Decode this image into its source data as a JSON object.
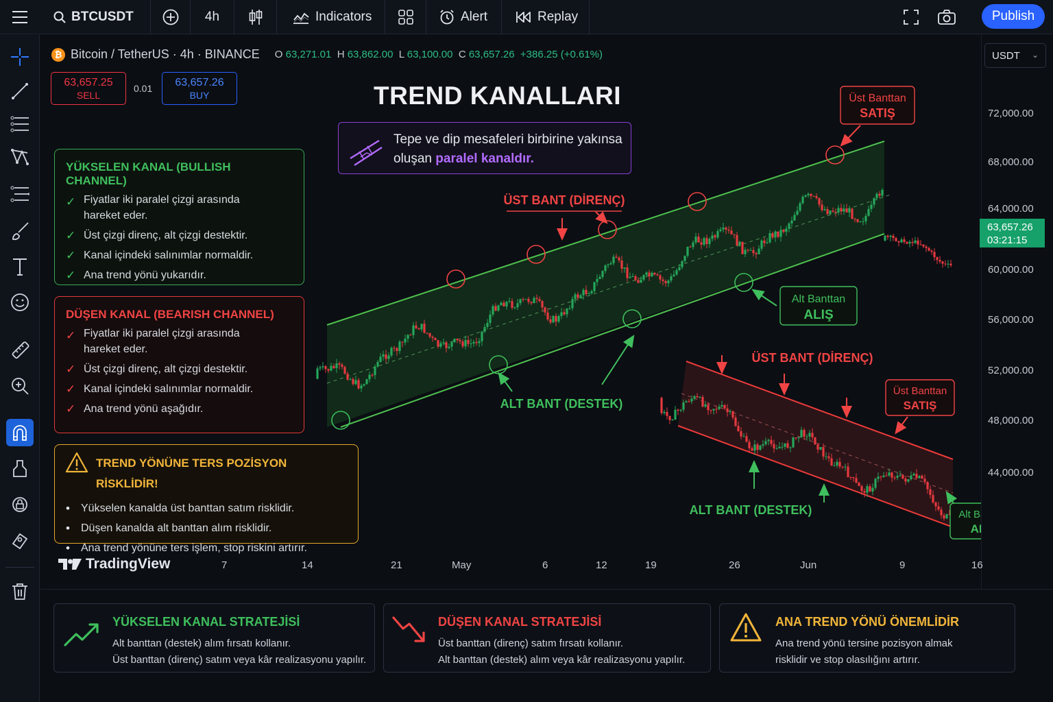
{
  "topbar": {
    "symbol": "BTCUSDT",
    "interval": "4h",
    "indicators": "Indicators",
    "alert": "Alert",
    "replay": "Replay",
    "publish": "Publish"
  },
  "chart_header": {
    "name": "Bitcoin / TetherUS · 4h · BINANCE",
    "btc_symbol": "₿",
    "o_label": "O",
    "o": "63,271.01",
    "h_label": "H",
    "h": "63,862.00",
    "l_label": "L",
    "l": "63,100.00",
    "c_label": "C",
    "c": "63,657.26",
    "change": "+386.25 (+0.61%)"
  },
  "trade": {
    "sell_price": "63,657.25",
    "sell_label": "SELL",
    "qty": "0.01",
    "buy_price": "63,657.26",
    "buy_label": "BUY"
  },
  "currency": "USDT",
  "title": "TREND KANALLARI",
  "info": {
    "line1": "Tepe ve dip mesafeleri birbirine yakınsa",
    "line2_prefix": "oluşan ",
    "line2_highlight": "paralel kanaldır."
  },
  "bullish_card": {
    "title": "YÜKSELEN KANAL (BULLISH CHANNEL)",
    "items": [
      "Fiyatlar iki paralel çizgi arasında hareket eder.",
      "Üst çizgi direnç, alt çizgi destektir.",
      "Kanal içindeki salınımlar normaldir.",
      "Ana trend yönü yukarıdır."
    ]
  },
  "bearish_card": {
    "title": "DÜŞEN KANAL (BEARISH CHANNEL)",
    "items": [
      "Fiyatlar iki paralel çizgi arasında hareket eder.",
      "Üst çizgi direnç, alt çizgi destektir.",
      "Kanal içindeki salınımlar normaldir.",
      "Ana trend yönü aşağıdır."
    ]
  },
  "warning_card": {
    "title": "TREND YÖNÜNE TERS POZİSYON RİSKLİDİR!",
    "items": [
      "Yükselen kanalda üst banttan satım risklidir.",
      "Düşen kanalda alt banttan alım risklidir.",
      "Ana trend yönüne ters işlem, stop riskini artırır."
    ]
  },
  "annotations": {
    "ust_bant_direnc": "ÜST BANT (DİRENÇ)",
    "alt_bant_destek": "ALT BANT (DESTEK)",
    "ust_banttan": "Üst Banttan",
    "satis": "SATIŞ",
    "alt_banttan": "Alt Banttan",
    "alis": "ALIŞ"
  },
  "price_axis": [
    "72,000.00",
    "68,000.00",
    "64,000.00",
    "60,000.00",
    "56,000.00",
    "52,000.00",
    "48,000.00",
    "44,000.00"
  ],
  "current_price": {
    "price": "63,657.26",
    "countdown": "03:21:15"
  },
  "time_axis": [
    "7",
    "14",
    "21",
    "May",
    "6",
    "12",
    "19",
    "26",
    "Jun",
    "9",
    "16"
  ],
  "brand": "TradingView",
  "strategies": [
    {
      "title": "YÜKSELEN KANAL STRATEJİSİ",
      "line1": "Alt banttan (destek) alım fırsatı kollanır.",
      "line2": "Üst banttan (direnç) satım veya kâr realizasyonu yapılır."
    },
    {
      "title": "DÜŞEN KANAL STRATEJİSİ",
      "line1": "Üst banttan (direnç) satım fırsatı kollanır.",
      "line2": "Alt banttan (destek) alım veya kâr realizasyonu yapılır."
    },
    {
      "title": "ANA TREND YÖNÜ ÖNEMLİDİR",
      "line1": "Ana trend yönü tersine pozisyon almak",
      "line2": "risklidir ve stop olasılığını artırır."
    }
  ],
  "colors": {
    "green": "#3fbf5d",
    "red": "#f04444",
    "accent": "#2962ff",
    "warning": "#f2b53a",
    "purple": "#b26bff"
  },
  "icons": [
    "menu-icon",
    "search-icon",
    "plus-circle-icon",
    "candles-icon",
    "indicators-icon",
    "alarm-clock-icon",
    "replay-icon",
    "fullscreen-icon",
    "camera-icon",
    "crosshair-icon",
    "trend-line-icon",
    "fib-icon",
    "pattern-icon",
    "brush-icon",
    "text-icon",
    "emoji-icon",
    "ruler-icon",
    "zoom-icon",
    "magnet-icon",
    "lock-icon",
    "trash-icon"
  ]
}
